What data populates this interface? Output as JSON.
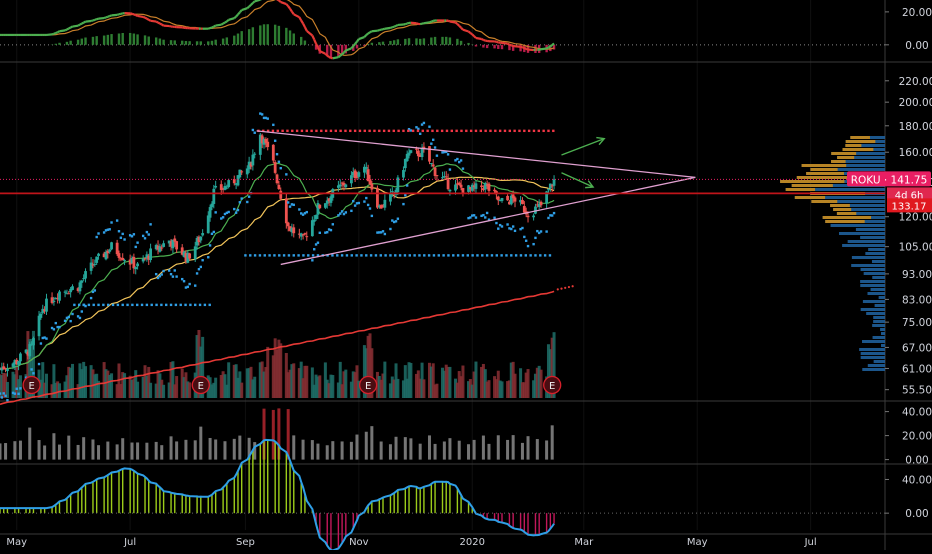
{
  "chart_data": [
    {
      "type": "line",
      "panel": "macd",
      "y_ticks": [
        "20.00",
        "0.00"
      ],
      "y_tick_values": [
        20,
        0
      ],
      "ylim": [
        -8,
        26
      ]
    },
    {
      "type": "candlestick",
      "panel": "price",
      "symbol": "ROKU",
      "price_scale": "log",
      "y_ticks": [
        "220.00",
        "200.00",
        "180.00",
        "160.00",
        "140.00",
        "120.00",
        "105.00",
        "93.00",
        "83.00",
        "75.00",
        "67.00",
        "61.00",
        "55.50"
      ],
      "y_tick_values": [
        220,
        200,
        180,
        160,
        140,
        120,
        105,
        93,
        83,
        75,
        67,
        61,
        55.5
      ],
      "ylim": [
        53,
        235
      ],
      "last_price": 141.75,
      "last_price_label": "ROKU · 141.75",
      "countdown": "4d 6h",
      "level_label": "133.17",
      "level": 133.17,
      "earnings_marker": "E",
      "earnings_dates": [
        "2019-05-09",
        "2019-08-08",
        "2019-11-06",
        "2020-02-13"
      ],
      "close_path": [
        [
          "2019-04-22",
          61
        ],
        [
          "2019-05-01",
          63
        ],
        [
          "2019-05-09",
          67
        ],
        [
          "2019-05-15",
          80
        ],
        [
          "2019-05-24",
          86
        ],
        [
          "2019-06-03",
          88
        ],
        [
          "2019-06-11",
          97
        ],
        [
          "2019-06-21",
          105
        ],
        [
          "2019-06-28",
          100
        ],
        [
          "2019-07-05",
          96
        ],
        [
          "2019-07-12",
          102
        ],
        [
          "2019-07-22",
          108
        ],
        [
          "2019-08-01",
          100
        ],
        [
          "2019-08-08",
          110
        ],
        [
          "2019-08-15",
          134
        ],
        [
          "2019-08-23",
          138
        ],
        [
          "2019-09-03",
          150
        ],
        [
          "2019-09-09",
          174
        ],
        [
          "2019-09-16",
          152
        ],
        [
          "2019-09-24",
          115
        ],
        [
          "2019-10-02",
          108
        ],
        [
          "2019-10-10",
          125
        ],
        [
          "2019-10-18",
          133
        ],
        [
          "2019-10-25",
          140
        ],
        [
          "2019-11-04",
          150
        ],
        [
          "2019-11-12",
          125
        ],
        [
          "2019-11-20",
          133
        ],
        [
          "2019-11-27",
          158
        ],
        [
          "2019-12-06",
          160
        ],
        [
          "2019-12-13",
          145
        ],
        [
          "2019-12-20",
          138
        ],
        [
          "2019-12-31",
          135
        ],
        [
          "2020-01-08",
          138
        ],
        [
          "2020-01-16",
          128
        ],
        [
          "2020-01-24",
          130
        ],
        [
          "2020-01-31",
          122
        ],
        [
          "2020-02-07",
          126
        ],
        [
          "2020-02-14",
          141.75
        ]
      ],
      "resistance_level": 176,
      "support_level": 101,
      "prior_support_level": 81,
      "triangle": {
        "upper": [
          [
            "2019-09-07",
            176
          ],
          [
            "2020-04-30",
            143
          ]
        ],
        "lower": [
          [
            "2019-09-20",
            97
          ],
          [
            "2020-04-30",
            143
          ]
        ]
      }
    },
    {
      "type": "bar",
      "panel": "volume_oscillator",
      "y_ticks": [
        "40.00",
        "20.00",
        "0.00"
      ],
      "y_tick_values": [
        40,
        20,
        0
      ],
      "ylim": [
        -2,
        48
      ]
    },
    {
      "type": "line",
      "panel": "momentum_oscillator",
      "y_ticks": [
        "40.00",
        "0.00"
      ],
      "y_tick_values": [
        40,
        0
      ],
      "ylim": [
        -20,
        56
      ]
    }
  ],
  "x_axis": {
    "labels": [
      "May",
      "Jul",
      "Sep",
      "Nov",
      "2020",
      "Mar",
      "May",
      "Jul"
    ],
    "dates": [
      "2019-05-01",
      "2019-07-01",
      "2019-09-01",
      "2019-11-01",
      "2020-01-01",
      "2020-03-01",
      "2020-05-01",
      "2020-07-01"
    ],
    "range": [
      "2019-04-22",
      "2020-08-10"
    ]
  },
  "colors": {
    "background": "#000000",
    "up": "#26a69a",
    "down": "#ef5350",
    "sma_fast": "#4caf50",
    "sma_slow": "#f2c45a",
    "sma_long": "#e53935",
    "triangle": "#e0a0d0",
    "resistance_dots": "#f23645",
    "support_dots": "#2f9fe6",
    "sar_dots": "#2f9fe6",
    "volume_profile_blue": "#1f5f9a",
    "volume_profile_orange": "#c98a1a",
    "price_label": "#e91e63",
    "level_label": "#e0181f",
    "macd_line_up": "#4caf50",
    "macd_line_down": "#e53935",
    "signal_line": "#c87f2a",
    "arrow": "#4caf50"
  }
}
